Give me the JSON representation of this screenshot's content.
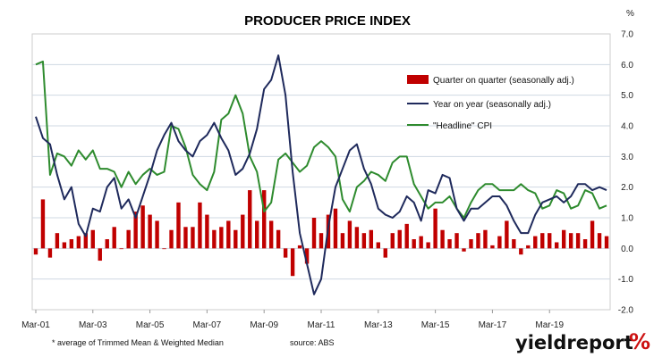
{
  "chart_data": {
    "type": "bar+line",
    "title": "PRODUCER PRICE INDEX",
    "unit": "%",
    "ylim": [
      -2.0,
      7.0
    ],
    "yticks": [
      "7.0",
      "6.0",
      "5.0",
      "4.0",
      "3.0",
      "2.0",
      "1.0",
      "0.0",
      "-1.0",
      "-2.0"
    ],
    "ytick_values": [
      7,
      6,
      5,
      4,
      3,
      2,
      1,
      0,
      -1,
      -2
    ],
    "x_start": "Mar-01",
    "xtick_labels": [
      "Mar-01",
      "Mar-03",
      "Mar-05",
      "Mar-07",
      "Mar-09",
      "Mar-11",
      "Mar-13",
      "Mar-15",
      "Mar-17",
      "Mar-19"
    ],
    "grid": true,
    "legend_position": "top-right",
    "colors": {
      "bar": "#c00000",
      "yoy": "#1f2a5c",
      "cpi": "#2e8b2e",
      "frame": "#cccccc",
      "grid": "#cfd8e3",
      "brand_accent": "#cc1111"
    },
    "series": [
      {
        "name": "Quarter on quarter (seasonally adj.)",
        "type": "bar",
        "values": [
          -0.2,
          1.6,
          -0.3,
          0.5,
          0.2,
          0.3,
          0.4,
          0.5,
          0.6,
          -0.4,
          0.3,
          0.7,
          0.0,
          0.6,
          1.2,
          1.4,
          1.1,
          0.9,
          0.0,
          0.6,
          1.5,
          0.7,
          0.7,
          1.5,
          1.1,
          0.6,
          0.7,
          0.9,
          0.6,
          1.1,
          1.9,
          0.9,
          1.9,
          0.9,
          0.6,
          -0.3,
          -0.9,
          0.1,
          -0.5,
          1.0,
          0.5,
          1.1,
          1.3,
          0.5,
          0.9,
          0.7,
          0.5,
          0.6,
          0.2,
          -0.3,
          0.5,
          0.6,
          0.8,
          0.3,
          0.4,
          0.2,
          1.3,
          0.6,
          0.3,
          0.5,
          -0.1,
          0.3,
          0.5,
          0.6,
          0.1,
          0.4,
          0.9,
          0.3,
          -0.2,
          0.1,
          0.4,
          0.5,
          0.5,
          0.2,
          0.6,
          0.5,
          0.5,
          0.3,
          0.9,
          0.5,
          0.4
        ]
      },
      {
        "name": "Year on year (seasonally adj.)",
        "type": "line",
        "values": [
          4.3,
          3.6,
          3.4,
          2.4,
          1.6,
          2.0,
          0.8,
          0.4,
          1.3,
          1.2,
          2.0,
          2.3,
          1.3,
          1.6,
          1.0,
          1.7,
          2.4,
          3.2,
          3.7,
          4.1,
          3.5,
          3.2,
          3.0,
          3.5,
          3.7,
          4.1,
          3.6,
          3.2,
          2.4,
          2.6,
          3.1,
          3.9,
          5.2,
          5.5,
          6.3,
          5.0,
          2.5,
          0.5,
          -0.5,
          -1.5,
          -1.0,
          0.7,
          2.0,
          2.6,
          3.2,
          3.4,
          2.6,
          2.1,
          1.3,
          1.1,
          1.0,
          1.2,
          1.7,
          1.5,
          0.9,
          1.9,
          1.8,
          2.4,
          2.3,
          1.3,
          0.9,
          1.3,
          1.3,
          1.5,
          1.7,
          1.7,
          1.4,
          0.9,
          0.5,
          0.5,
          1.1,
          1.5,
          1.6,
          1.7,
          1.5,
          1.7,
          2.1,
          2.1,
          1.9,
          2.0,
          1.9
        ]
      },
      {
        "name": "\"Headline\" CPI",
        "type": "line",
        "values": [
          6.0,
          6.1,
          2.4,
          3.1,
          3.0,
          2.7,
          3.2,
          2.9,
          3.2,
          2.6,
          2.6,
          2.5,
          2.0,
          2.5,
          2.1,
          2.4,
          2.6,
          2.4,
          2.5,
          4.0,
          3.9,
          3.3,
          2.4,
          2.1,
          1.9,
          2.5,
          4.2,
          4.4,
          5.0,
          4.4,
          3.0,
          2.5,
          1.2,
          1.5,
          2.9,
          3.1,
          2.8,
          2.5,
          2.7,
          3.3,
          3.5,
          3.3,
          3.0,
          1.6,
          1.2,
          2.0,
          2.2,
          2.5,
          2.4,
          2.2,
          2.8,
          3.0,
          3.0,
          2.1,
          1.7,
          1.3,
          1.5,
          1.5,
          1.7,
          1.3,
          1.0,
          1.5,
          1.9,
          2.1,
          2.1,
          1.9,
          1.9,
          1.9,
          2.1,
          1.9,
          1.8,
          1.3,
          1.4,
          1.9,
          1.8,
          1.3,
          1.4,
          1.9,
          1.8,
          1.3,
          1.4
        ]
      }
    ]
  },
  "footnote": "* average of Trimmed Mean & Weighted Median",
  "source": "source: ABS",
  "brand": {
    "name": "yieldreport",
    "mark": "%"
  }
}
